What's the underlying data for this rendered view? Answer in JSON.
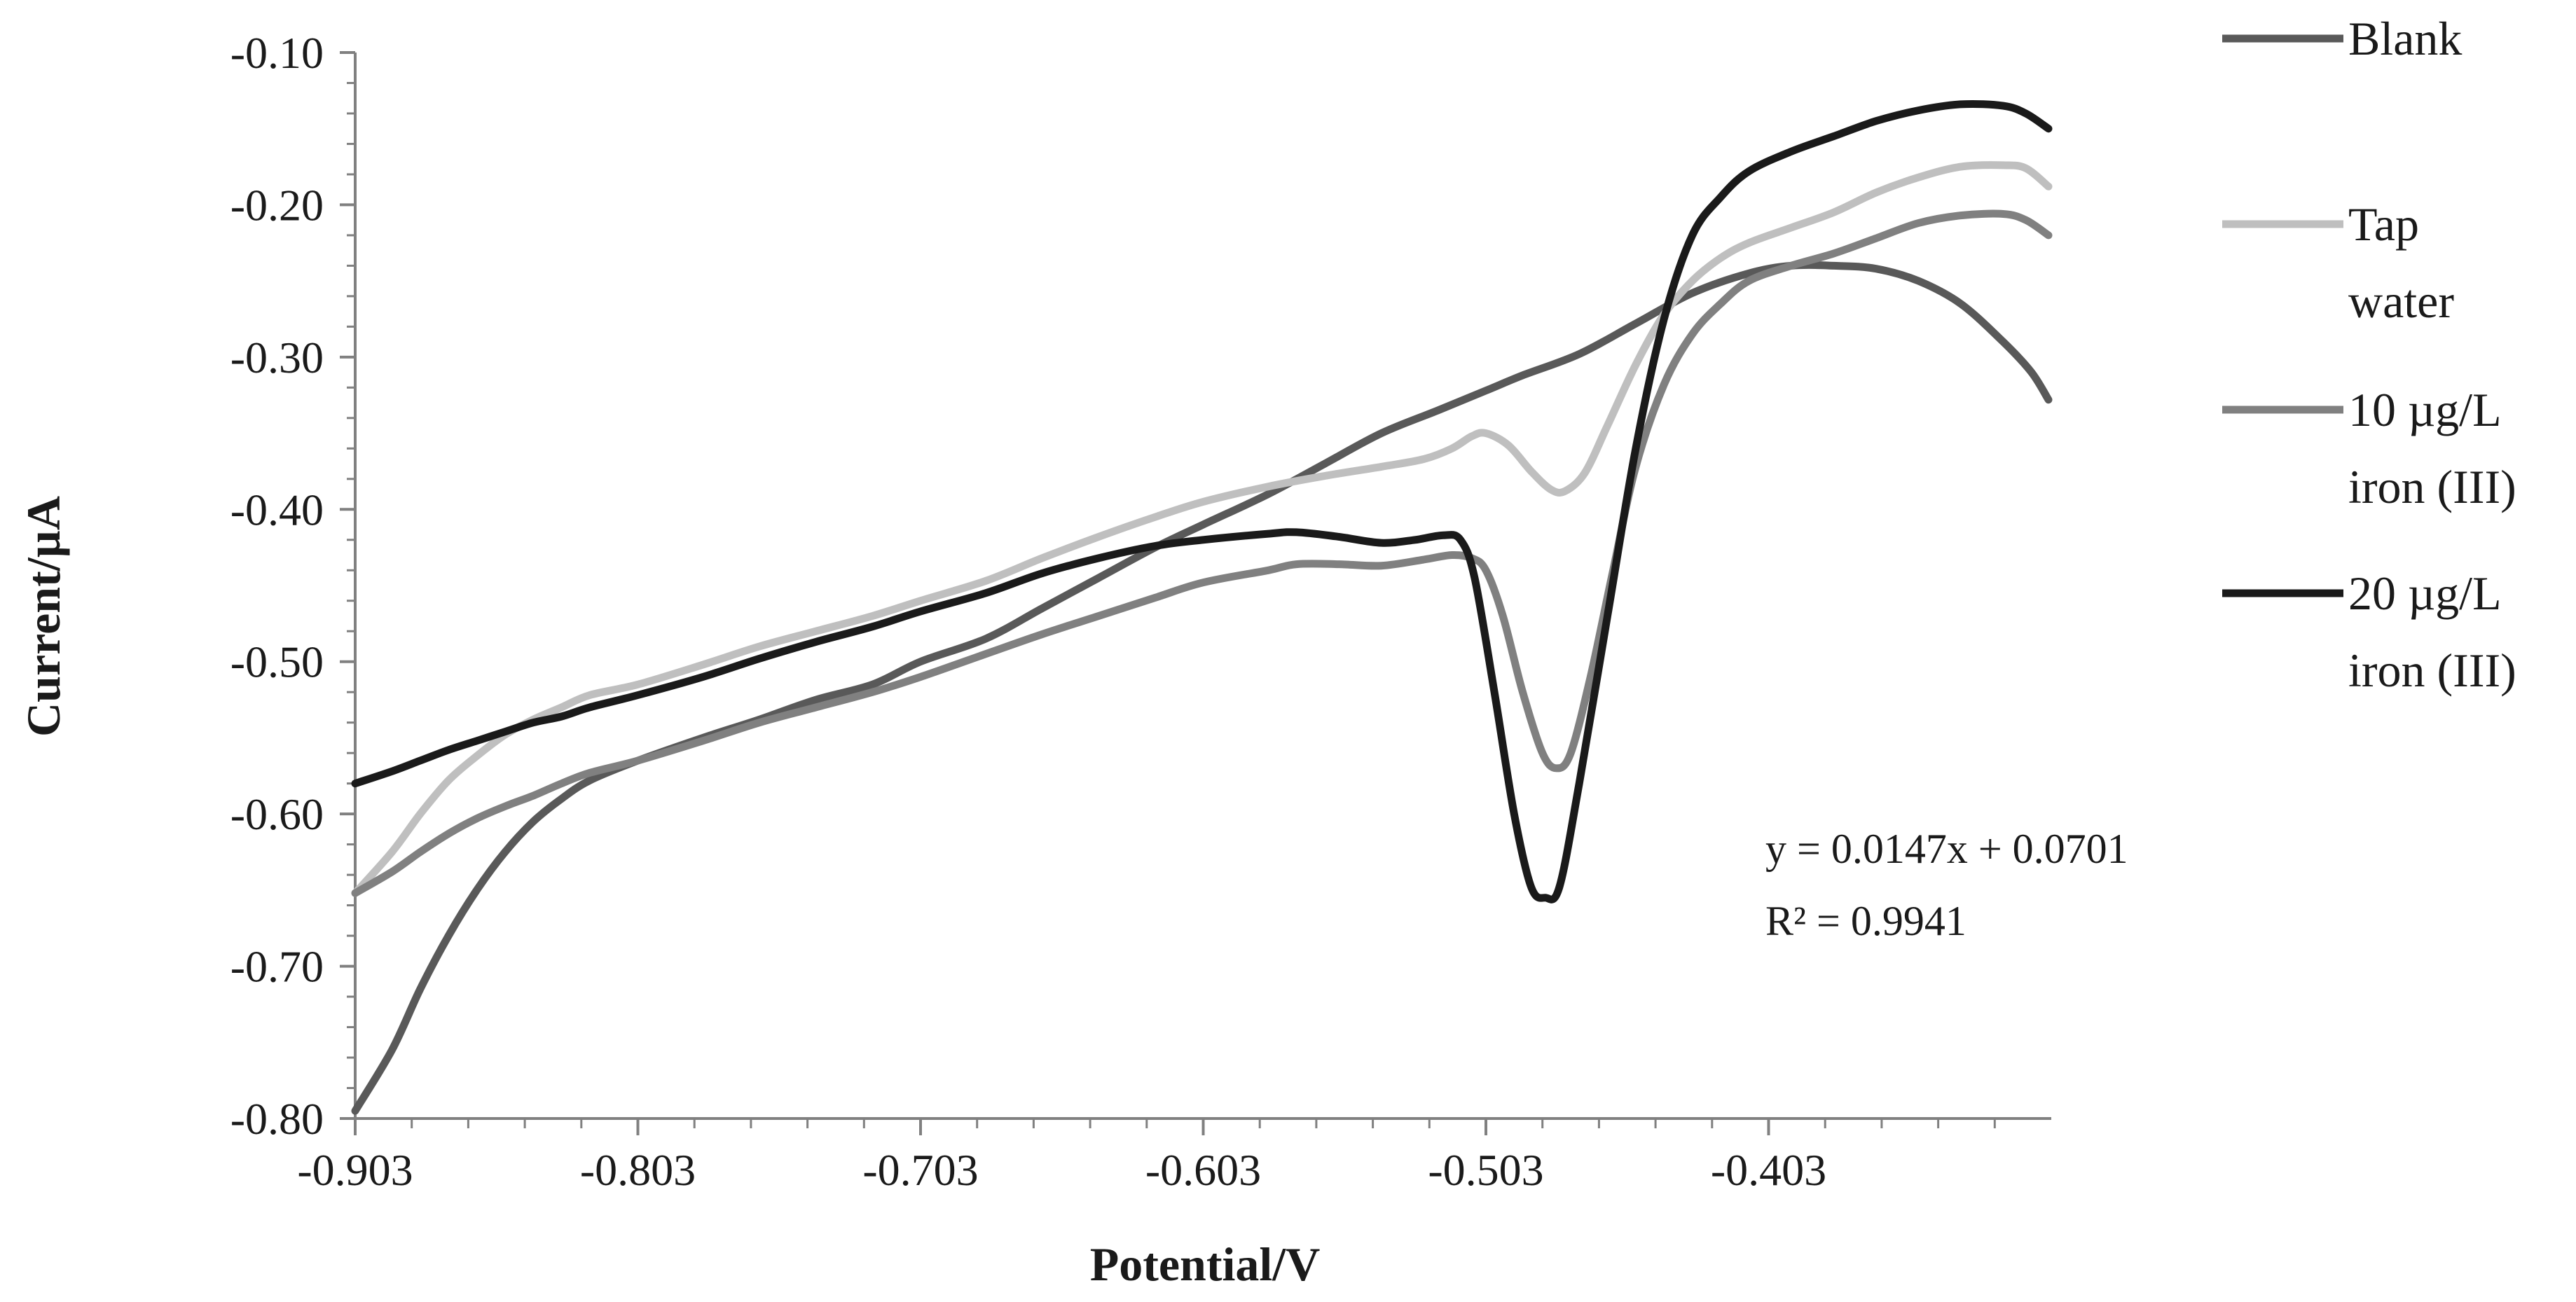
{
  "chart_data": {
    "type": "line",
    "title": "",
    "xlabel": "Potential/V",
    "ylabel": "Current/µA",
    "xlim": [
      -0.903,
      -0.303
    ],
    "ylim": [
      -0.8,
      -0.1
    ],
    "x_ticks": [
      -0.903,
      -0.803,
      -0.703,
      -0.603,
      -0.503,
      -0.403
    ],
    "x_tick_labels": [
      "-0.903",
      "-0.803",
      "-0.703",
      "-0.603",
      "-0.503",
      "-0.403"
    ],
    "y_ticks": [
      -0.1,
      -0.2,
      -0.3,
      -0.4,
      -0.5,
      -0.6,
      -0.7,
      -0.8
    ],
    "y_tick_labels": [
      "-0.10",
      "-0.20",
      "-0.30",
      "-0.40",
      "-0.50",
      "-0.60",
      "-0.70",
      "-0.80"
    ],
    "grid": false,
    "legend_position": "right",
    "annotation": {
      "equation": "y = 0.0147x + 0.0701",
      "r_squared": "R² = 0.9941"
    },
    "series": [
      {
        "name": "Blank",
        "legend_lines": [
          "Blank"
        ],
        "color": "#595959",
        "points": [
          [
            -0.903,
            -0.795
          ],
          [
            -0.89,
            -0.755
          ],
          [
            -0.88,
            -0.715
          ],
          [
            -0.87,
            -0.68
          ],
          [
            -0.86,
            -0.65
          ],
          [
            -0.85,
            -0.625
          ],
          [
            -0.84,
            -0.605
          ],
          [
            -0.83,
            -0.59
          ],
          [
            -0.82,
            -0.578
          ],
          [
            -0.803,
            -0.565
          ],
          [
            -0.78,
            -0.55
          ],
          [
            -0.76,
            -0.538
          ],
          [
            -0.74,
            -0.525
          ],
          [
            -0.72,
            -0.515
          ],
          [
            -0.703,
            -0.5
          ],
          [
            -0.68,
            -0.485
          ],
          [
            -0.66,
            -0.465
          ],
          [
            -0.64,
            -0.445
          ],
          [
            -0.62,
            -0.425
          ],
          [
            -0.603,
            -0.41
          ],
          [
            -0.58,
            -0.39
          ],
          [
            -0.56,
            -0.37
          ],
          [
            -0.54,
            -0.35
          ],
          [
            -0.52,
            -0.335
          ],
          [
            -0.503,
            -0.322
          ],
          [
            -0.49,
            -0.312
          ],
          [
            -0.47,
            -0.298
          ],
          [
            -0.45,
            -0.278
          ],
          [
            -0.43,
            -0.258
          ],
          [
            -0.41,
            -0.245
          ],
          [
            -0.395,
            -0.24
          ],
          [
            -0.38,
            -0.24
          ],
          [
            -0.365,
            -0.242
          ],
          [
            -0.35,
            -0.25
          ],
          [
            -0.335,
            -0.265
          ],
          [
            -0.32,
            -0.29
          ],
          [
            -0.31,
            -0.31
          ],
          [
            -0.304,
            -0.328
          ]
        ]
      },
      {
        "name": "Tap water",
        "legend_lines": [
          "Tap",
          "water"
        ],
        "color": "#bfbfbf",
        "points": [
          [
            -0.903,
            -0.652
          ],
          [
            -0.89,
            -0.625
          ],
          [
            -0.88,
            -0.6
          ],
          [
            -0.87,
            -0.578
          ],
          [
            -0.86,
            -0.562
          ],
          [
            -0.85,
            -0.548
          ],
          [
            -0.84,
            -0.538
          ],
          [
            -0.83,
            -0.53
          ],
          [
            -0.82,
            -0.522
          ],
          [
            -0.803,
            -0.515
          ],
          [
            -0.78,
            -0.502
          ],
          [
            -0.76,
            -0.49
          ],
          [
            -0.74,
            -0.48
          ],
          [
            -0.72,
            -0.47
          ],
          [
            -0.703,
            -0.46
          ],
          [
            -0.68,
            -0.447
          ],
          [
            -0.66,
            -0.432
          ],
          [
            -0.64,
            -0.418
          ],
          [
            -0.62,
            -0.405
          ],
          [
            -0.603,
            -0.395
          ],
          [
            -0.58,
            -0.385
          ],
          [
            -0.56,
            -0.378
          ],
          [
            -0.54,
            -0.372
          ],
          [
            -0.525,
            -0.367
          ],
          [
            -0.515,
            -0.36
          ],
          [
            -0.508,
            -0.352
          ],
          [
            -0.503,
            -0.35
          ],
          [
            -0.495,
            -0.358
          ],
          [
            -0.487,
            -0.375
          ],
          [
            -0.48,
            -0.387
          ],
          [
            -0.475,
            -0.388
          ],
          [
            -0.468,
            -0.376
          ],
          [
            -0.46,
            -0.345
          ],
          [
            -0.45,
            -0.305
          ],
          [
            -0.44,
            -0.272
          ],
          [
            -0.43,
            -0.25
          ],
          [
            -0.42,
            -0.235
          ],
          [
            -0.41,
            -0.225
          ],
          [
            -0.395,
            -0.215
          ],
          [
            -0.38,
            -0.205
          ],
          [
            -0.365,
            -0.192
          ],
          [
            -0.35,
            -0.182
          ],
          [
            -0.335,
            -0.175
          ],
          [
            -0.32,
            -0.174
          ],
          [
            -0.312,
            -0.176
          ],
          [
            -0.304,
            -0.188
          ]
        ]
      },
      {
        "name": "10 µg/L iron (III)",
        "legend_lines": [
          "10 µg/L",
          "iron (III)"
        ],
        "color": "#808080",
        "points": [
          [
            -0.903,
            -0.652
          ],
          [
            -0.89,
            -0.638
          ],
          [
            -0.88,
            -0.625
          ],
          [
            -0.87,
            -0.613
          ],
          [
            -0.86,
            -0.603
          ],
          [
            -0.85,
            -0.595
          ],
          [
            -0.84,
            -0.588
          ],
          [
            -0.83,
            -0.58
          ],
          [
            -0.82,
            -0.573
          ],
          [
            -0.803,
            -0.565
          ],
          [
            -0.78,
            -0.552
          ],
          [
            -0.76,
            -0.54
          ],
          [
            -0.74,
            -0.53
          ],
          [
            -0.72,
            -0.52
          ],
          [
            -0.703,
            -0.51
          ],
          [
            -0.68,
            -0.495
          ],
          [
            -0.66,
            -0.482
          ],
          [
            -0.64,
            -0.47
          ],
          [
            -0.62,
            -0.458
          ],
          [
            -0.603,
            -0.448
          ],
          [
            -0.58,
            -0.44
          ],
          [
            -0.57,
            -0.436
          ],
          [
            -0.555,
            -0.436
          ],
          [
            -0.54,
            -0.437
          ],
          [
            -0.525,
            -0.433
          ],
          [
            -0.515,
            -0.43
          ],
          [
            -0.508,
            -0.432
          ],
          [
            -0.503,
            -0.44
          ],
          [
            -0.497,
            -0.47
          ],
          [
            -0.49,
            -0.52
          ],
          [
            -0.483,
            -0.56
          ],
          [
            -0.478,
            -0.57
          ],
          [
            -0.473,
            -0.56
          ],
          [
            -0.466,
            -0.51
          ],
          [
            -0.458,
            -0.44
          ],
          [
            -0.45,
            -0.372
          ],
          [
            -0.44,
            -0.318
          ],
          [
            -0.43,
            -0.285
          ],
          [
            -0.42,
            -0.265
          ],
          [
            -0.41,
            -0.25
          ],
          [
            -0.395,
            -0.24
          ],
          [
            -0.38,
            -0.232
          ],
          [
            -0.365,
            -0.222
          ],
          [
            -0.35,
            -0.212
          ],
          [
            -0.335,
            -0.207
          ],
          [
            -0.32,
            -0.206
          ],
          [
            -0.312,
            -0.21
          ],
          [
            -0.304,
            -0.22
          ]
        ]
      },
      {
        "name": "20 µg/L iron (III)",
        "legend_lines": [
          "20 µg/L",
          "iron (III)"
        ],
        "color": "#1a1a1a",
        "points": [
          [
            -0.903,
            -0.58
          ],
          [
            -0.89,
            -0.572
          ],
          [
            -0.88,
            -0.565
          ],
          [
            -0.87,
            -0.558
          ],
          [
            -0.86,
            -0.552
          ],
          [
            -0.85,
            -0.546
          ],
          [
            -0.84,
            -0.54
          ],
          [
            -0.83,
            -0.536
          ],
          [
            -0.82,
            -0.53
          ],
          [
            -0.803,
            -0.522
          ],
          [
            -0.78,
            -0.51
          ],
          [
            -0.76,
            -0.498
          ],
          [
            -0.74,
            -0.487
          ],
          [
            -0.72,
            -0.477
          ],
          [
            -0.703,
            -0.467
          ],
          [
            -0.68,
            -0.455
          ],
          [
            -0.66,
            -0.442
          ],
          [
            -0.64,
            -0.432
          ],
          [
            -0.62,
            -0.424
          ],
          [
            -0.603,
            -0.42
          ],
          [
            -0.58,
            -0.416
          ],
          [
            -0.57,
            -0.415
          ],
          [
            -0.555,
            -0.418
          ],
          [
            -0.54,
            -0.422
          ],
          [
            -0.528,
            -0.42
          ],
          [
            -0.518,
            -0.417
          ],
          [
            -0.512,
            -0.42
          ],
          [
            -0.507,
            -0.445
          ],
          [
            -0.5,
            -0.52
          ],
          [
            -0.493,
            -0.6
          ],
          [
            -0.487,
            -0.648
          ],
          [
            -0.482,
            -0.655
          ],
          [
            -0.477,
            -0.648
          ],
          [
            -0.47,
            -0.58
          ],
          [
            -0.46,
            -0.47
          ],
          [
            -0.45,
            -0.36
          ],
          [
            -0.44,
            -0.275
          ],
          [
            -0.43,
            -0.22
          ],
          [
            -0.42,
            -0.195
          ],
          [
            -0.41,
            -0.178
          ],
          [
            -0.395,
            -0.165
          ],
          [
            -0.38,
            -0.155
          ],
          [
            -0.365,
            -0.145
          ],
          [
            -0.35,
            -0.138
          ],
          [
            -0.335,
            -0.134
          ],
          [
            -0.32,
            -0.135
          ],
          [
            -0.312,
            -0.14
          ],
          [
            -0.304,
            -0.15
          ]
        ]
      }
    ]
  }
}
